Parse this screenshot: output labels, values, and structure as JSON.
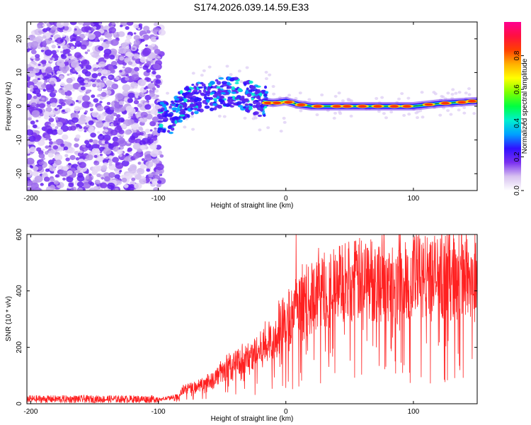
{
  "chart_data": [
    {
      "type": "heatmap",
      "title": "S174.2026.039.14.59.E33",
      "xlabel": "Height of straight line (km)",
      "ylabel": "Frequency (Hz)",
      "xlim": [
        -203,
        150
      ],
      "ylim": [
        -25,
        25
      ],
      "xticks": [
        -200,
        -100,
        0,
        100
      ],
      "yticks": [
        -20,
        -10,
        0,
        10,
        20
      ],
      "colorbar": {
        "label": "Normalized spectral amplitude",
        "range": [
          0,
          1
        ],
        "ticks": [
          "0.0",
          "0.2",
          "0.4",
          "0.6",
          "0.8"
        ],
        "colors": [
          "#ffffff",
          "#d8c2f0",
          "#7a2ff0",
          "#3010ff",
          "#00a0ff",
          "#00f0d0",
          "#00ff40",
          "#80ff00",
          "#ffff00",
          "#ffb000",
          "#ff4000",
          "#ff1040",
          "#ff0090"
        ]
      },
      "ridge": [
        {
          "x": -100,
          "y": -3
        },
        {
          "x": -90,
          "y": -3.5
        },
        {
          "x": -80,
          "y": 1
        },
        {
          "x": -70,
          "y": 2.5
        },
        {
          "x": -60,
          "y": 3
        },
        {
          "x": -50,
          "y": 4.5
        },
        {
          "x": -40,
          "y": 4
        },
        {
          "x": -30,
          "y": 3
        },
        {
          "x": -20,
          "y": 1.5
        },
        {
          "x": -10,
          "y": 1
        },
        {
          "x": 0,
          "y": 1.5
        },
        {
          "x": 10,
          "y": 0.5
        },
        {
          "x": 20,
          "y": 0
        },
        {
          "x": 40,
          "y": 0
        },
        {
          "x": 60,
          "y": 0
        },
        {
          "x": 80,
          "y": 0
        },
        {
          "x": 100,
          "y": 0
        },
        {
          "x": 120,
          "y": 0.8
        },
        {
          "x": 150,
          "y": 1.5
        }
      ],
      "noise_region": {
        "from": -203,
        "to": -97,
        "ylim": [
          -25,
          25
        ]
      }
    },
    {
      "type": "line",
      "xlabel": "Height of straight line (km)",
      "ylabel": "SNR (10 * v/v)",
      "xlim": [
        -203,
        150
      ],
      "ylim": [
        0,
        600
      ],
      "xticks": [
        -200,
        -100,
        0,
        100
      ],
      "yticks": [
        0,
        200,
        400,
        600
      ],
      "color": "#ff2020",
      "envelope": [
        {
          "x": -203,
          "y": 15
        },
        {
          "x": -100,
          "y": 15
        },
        {
          "x": -85,
          "y": 25
        },
        {
          "x": -80,
          "y": 50
        },
        {
          "x": -70,
          "y": 60
        },
        {
          "x": -60,
          "y": 80
        },
        {
          "x": -50,
          "y": 110
        },
        {
          "x": -40,
          "y": 140
        },
        {
          "x": -30,
          "y": 160
        },
        {
          "x": -20,
          "y": 190
        },
        {
          "x": -10,
          "y": 230
        },
        {
          "x": 0,
          "y": 300
        },
        {
          "x": 10,
          "y": 330
        },
        {
          "x": 20,
          "y": 370
        },
        {
          "x": 30,
          "y": 400
        },
        {
          "x": 40,
          "y": 420
        },
        {
          "x": 50,
          "y": 430
        },
        {
          "x": 60,
          "y": 440
        },
        {
          "x": 80,
          "y": 440
        },
        {
          "x": 100,
          "y": 450
        },
        {
          "x": 120,
          "y": 450
        },
        {
          "x": 150,
          "y": 460
        }
      ],
      "spikes": [
        {
          "x": 8,
          "y": 600
        },
        {
          "x": 43,
          "y": 520
        },
        {
          "x": 100,
          "y": 590
        },
        {
          "x": 108,
          "y": 550
        },
        {
          "x": 58,
          "y": 510
        }
      ]
    }
  ]
}
